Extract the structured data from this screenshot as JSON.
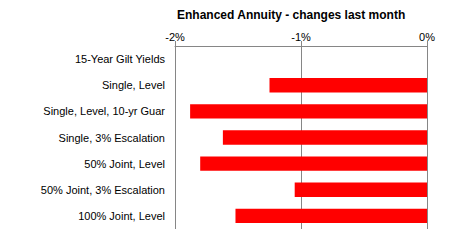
{
  "chart_data": {
    "type": "bar",
    "title": "Enhanced Annuity - changes last month",
    "orientation": "horizontal",
    "categories": [
      "15-Year Gilt Yields",
      "Single, Level",
      "Single, Level, 10-yr Guar",
      "Single, 3% Escalation",
      "50% Joint, Level",
      "50% Joint, 3% Escalation",
      "100% Joint, Level"
    ],
    "values": [
      null,
      -1.25,
      -1.88,
      -1.62,
      -1.8,
      -1.05,
      -1.52
    ],
    "color": "#ff0000",
    "xlim": [
      -2,
      0
    ],
    "xticks": [
      {
        "value": -2,
        "label": "-2%"
      },
      {
        "value": -1,
        "label": "-1%"
      },
      {
        "value": 0,
        "label": "0%"
      }
    ],
    "grid": true
  }
}
